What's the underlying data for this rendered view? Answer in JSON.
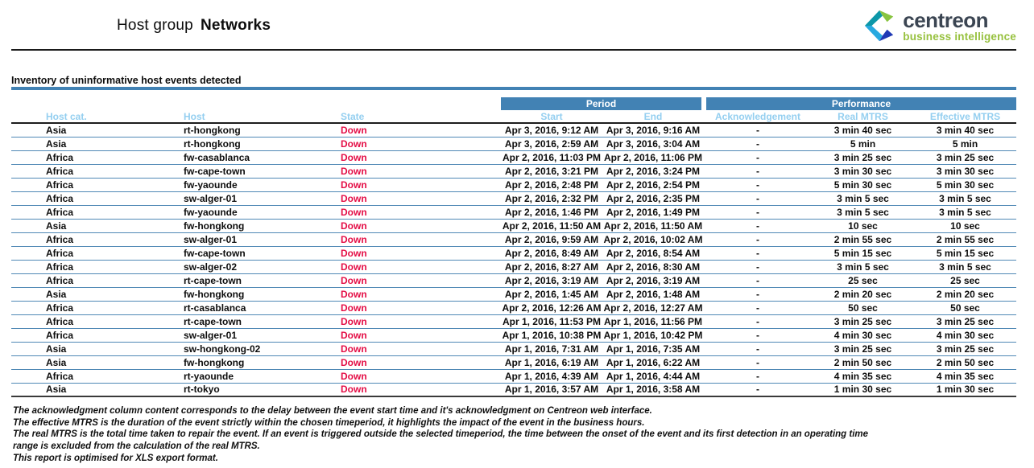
{
  "header": {
    "title_prefix": "Host group",
    "title_name": "Networks"
  },
  "logo": {
    "name": "centreon",
    "tagline": "business intelligence",
    "colors": {
      "mark_teal": "#0c97a8",
      "mark_lime": "#88c440",
      "mark_lightblue": "#28a9e0",
      "mark_darkblue": "#2039b5",
      "name_color": "#3b4552",
      "tagline_color": "#97c13e"
    }
  },
  "section": {
    "title": "Inventory of uninformative host events detected"
  },
  "colors": {
    "steel_blue": "#4282b4",
    "subheader_blue": "#94cff0",
    "state_down_red": "#e40d45"
  },
  "table": {
    "group_headers": [
      {
        "label": "Period",
        "span": 2
      },
      {
        "label": "Performance",
        "span": 3
      }
    ],
    "columns": [
      "Host cat.",
      "Host",
      "State",
      "Start",
      "End",
      "Acknowledgement",
      "Real MTRS",
      "Effective MTRS"
    ],
    "rows": [
      [
        "Asia",
        "rt-hongkong",
        "Down",
        "Apr 3, 2016, 9:12 AM",
        "Apr 3, 2016, 9:16 AM",
        "-",
        "3 min 40 sec",
        "3 min 40 sec"
      ],
      [
        "Asia",
        "rt-hongkong",
        "Down",
        "Apr 3, 2016, 2:59 AM",
        "Apr 3, 2016, 3:04 AM",
        "-",
        "5 min",
        "5 min"
      ],
      [
        "Africa",
        "fw-casablanca",
        "Down",
        "Apr 2, 2016, 11:03 PM",
        "Apr 2, 2016, 11:06 PM",
        "-",
        "3 min 25 sec",
        "3 min 25 sec"
      ],
      [
        "Africa",
        "fw-cape-town",
        "Down",
        "Apr 2, 2016, 3:21 PM",
        "Apr 2, 2016, 3:24 PM",
        "-",
        "3 min 30 sec",
        "3 min 30 sec"
      ],
      [
        "Africa",
        "fw-yaounde",
        "Down",
        "Apr 2, 2016, 2:48 PM",
        "Apr 2, 2016, 2:54 PM",
        "-",
        "5 min 30 sec",
        "5 min 30 sec"
      ],
      [
        "Africa",
        "sw-alger-01",
        "Down",
        "Apr 2, 2016, 2:32 PM",
        "Apr 2, 2016, 2:35 PM",
        "-",
        "3 min 5 sec",
        "3 min 5 sec"
      ],
      [
        "Africa",
        "fw-yaounde",
        "Down",
        "Apr 2, 2016, 1:46 PM",
        "Apr 2, 2016, 1:49 PM",
        "-",
        "3 min 5 sec",
        "3 min 5 sec"
      ],
      [
        "Asia",
        "fw-hongkong",
        "Down",
        "Apr 2, 2016, 11:50 AM",
        "Apr 2, 2016, 11:50 AM",
        "-",
        "10 sec",
        "10 sec"
      ],
      [
        "Africa",
        "sw-alger-01",
        "Down",
        "Apr 2, 2016, 9:59 AM",
        "Apr 2, 2016, 10:02 AM",
        "-",
        "2 min 55 sec",
        "2 min 55 sec"
      ],
      [
        "Africa",
        "fw-cape-town",
        "Down",
        "Apr 2, 2016, 8:49 AM",
        "Apr 2, 2016, 8:54 AM",
        "-",
        "5 min 15 sec",
        "5 min 15 sec"
      ],
      [
        "Africa",
        "sw-alger-02",
        "Down",
        "Apr 2, 2016, 8:27 AM",
        "Apr 2, 2016, 8:30 AM",
        "-",
        "3 min 5 sec",
        "3 min 5 sec"
      ],
      [
        "Africa",
        "rt-cape-town",
        "Down",
        "Apr 2, 2016, 3:19 AM",
        "Apr 2, 2016, 3:19 AM",
        "-",
        "25 sec",
        "25 sec"
      ],
      [
        "Asia",
        "fw-hongkong",
        "Down",
        "Apr 2, 2016, 1:45 AM",
        "Apr 2, 2016, 1:48 AM",
        "-",
        "2 min 20 sec",
        "2 min 20 sec"
      ],
      [
        "Africa",
        "rt-casablanca",
        "Down",
        "Apr 2, 2016, 12:26 AM",
        "Apr 2, 2016, 12:27 AM",
        "-",
        "50 sec",
        "50 sec"
      ],
      [
        "Africa",
        "rt-cape-town",
        "Down",
        "Apr 1, 2016, 11:53 PM",
        "Apr 1, 2016, 11:56 PM",
        "-",
        "3 min 25 sec",
        "3 min 25 sec"
      ],
      [
        "Africa",
        "sw-alger-01",
        "Down",
        "Apr 1, 2016, 10:38 PM",
        "Apr 1, 2016, 10:42 PM",
        "-",
        "4 min 30 sec",
        "4 min 30 sec"
      ],
      [
        "Asia",
        "sw-hongkong-02",
        "Down",
        "Apr 1, 2016, 7:31 AM",
        "Apr 1, 2016, 7:35 AM",
        "-",
        "3 min 25 sec",
        "3 min 25 sec"
      ],
      [
        "Asia",
        "fw-hongkong",
        "Down",
        "Apr 1, 2016, 6:19 AM",
        "Apr 1, 2016, 6:22 AM",
        "-",
        "2 min 50 sec",
        "2 min 50 sec"
      ],
      [
        "Africa",
        "rt-yaounde",
        "Down",
        "Apr 1, 2016, 4:39 AM",
        "Apr 1, 2016, 4:44 AM",
        "-",
        "4 min 35 sec",
        "4 min 35 sec"
      ],
      [
        "Asia",
        "rt-tokyo",
        "Down",
        "Apr 1, 2016, 3:57 AM",
        "Apr 1, 2016, 3:58 AM",
        "-",
        "1 min 30 sec",
        "1 min 30 sec"
      ]
    ]
  },
  "footnotes": [
    "The acknowledgment column content corresponds to the delay between the event start time and it's acknowledgment on Centreon web interface.",
    "The effective MTRS is the duration of the event strictly within the chosen timeperiod, it highlights the impact of the event in the business hours.",
    "The real MTRS is the total time taken to repair the event. If an event is triggered outside the selected timeperiod, the time between the onset of the event and its first detection in an operating time",
    "range  is excluded from the calculation of the real MTRS.",
    "This report is optimised for XLS export format."
  ]
}
